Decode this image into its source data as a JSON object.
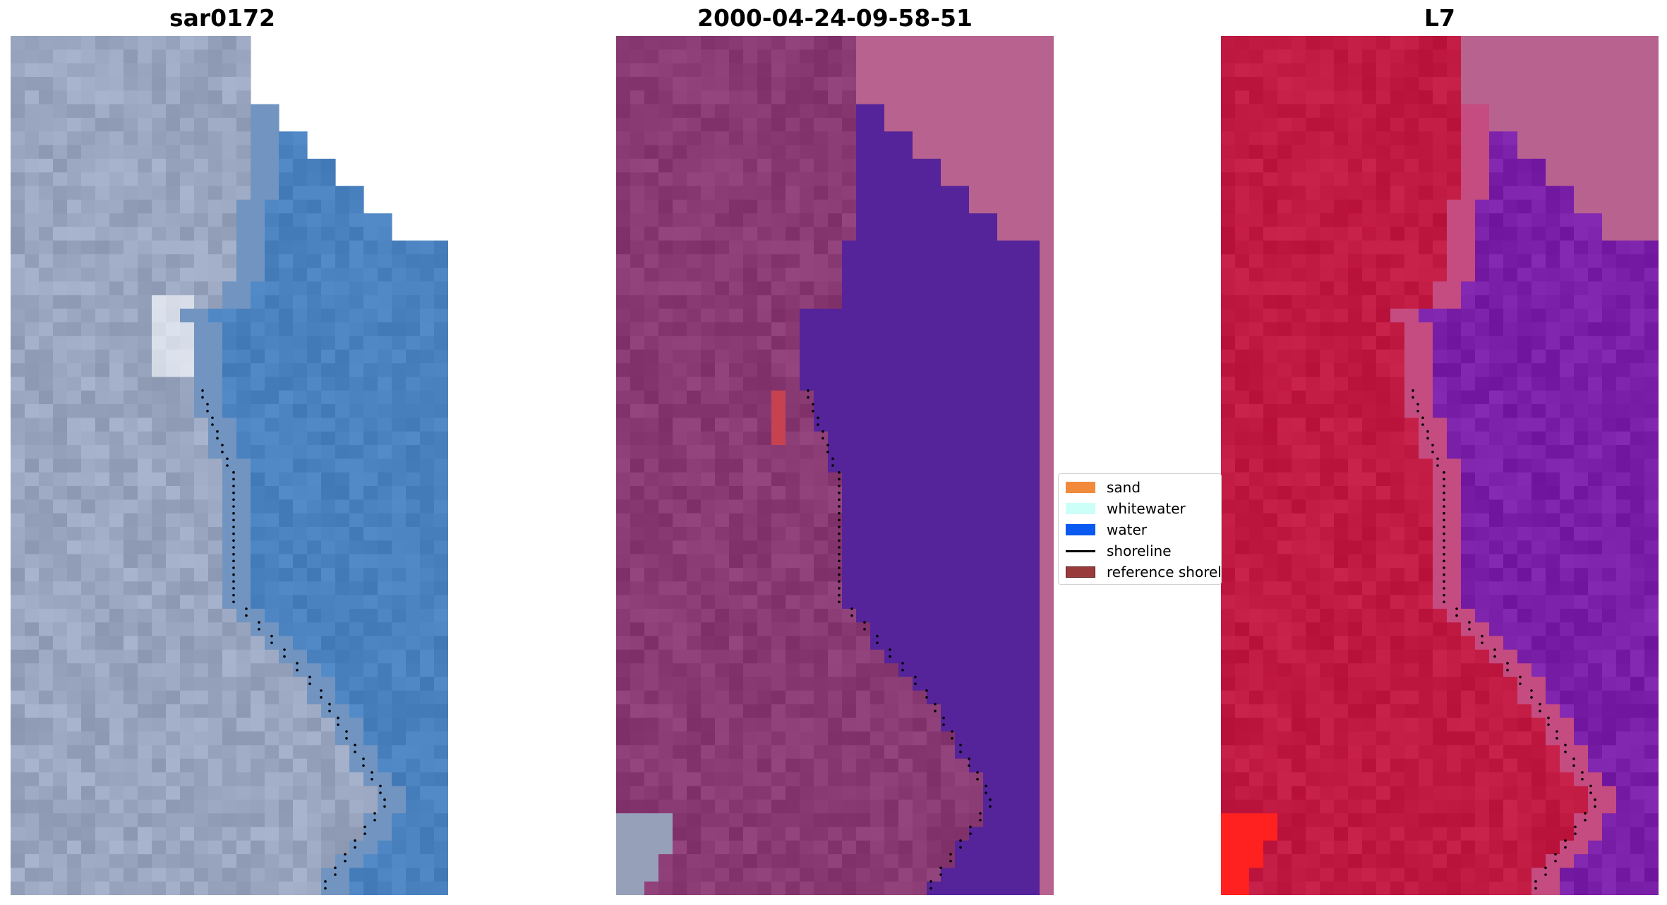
{
  "panels": [
    {
      "title": "sar0172",
      "mode": "rgb"
    },
    {
      "title": "2000-04-24-09-58-51",
      "mode": "classified"
    },
    {
      "title": "L7",
      "mode": "mndwi"
    }
  ],
  "legend": {
    "items": [
      {
        "label": "sand",
        "type": "patch",
        "color": "#f28a3c"
      },
      {
        "label": "whitewater",
        "type": "patch",
        "color": "#ccfff7"
      },
      {
        "label": "water",
        "type": "patch",
        "color": "#0a59f0"
      },
      {
        "label": "shoreline",
        "type": "line",
        "color": "#000000"
      },
      {
        "label": "reference shoreline",
        "type": "patch",
        "color": "#9a3b3b"
      }
    ]
  },
  "colors": {
    "rgb_sand": "#9aa6bf",
    "rgb_water": "#4a82c0",
    "rgb_bright": "#f3f6fb",
    "classified_land": "#8a3a73",
    "classified_water": "#55249a",
    "classified_nodata": "#b8628f",
    "classified_sand": "#c64250",
    "mndwi_land": "#c01a42",
    "mndwi_water": "#7a1fa8",
    "mndwi_nodata": "#b8628f",
    "mndwi_bright": "#ff2020"
  }
}
